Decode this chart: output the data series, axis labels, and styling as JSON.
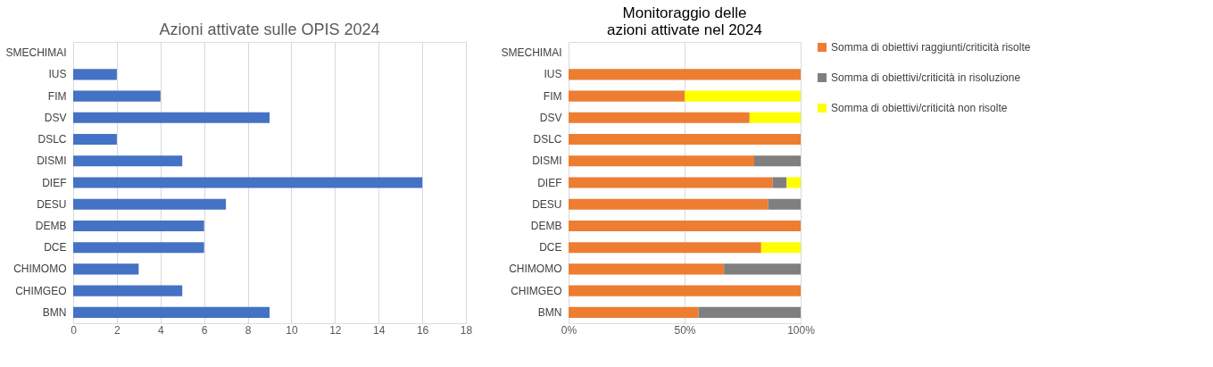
{
  "chart_data": [
    {
      "type": "bar",
      "orientation": "horizontal",
      "title": "Azioni attivate sulle OPIS 2024",
      "categories": [
        "SMECHIMAI",
        "IUS",
        "FIM",
        "DSV",
        "DSLC",
        "DISMI",
        "DIEF",
        "DESU",
        "DEMB",
        "DCE",
        "CHIMOMO",
        "CHIMGEO",
        "BMN"
      ],
      "series": [
        {
          "color": "#4472c4",
          "values": [
            null,
            2,
            4,
            9,
            2,
            5,
            16,
            7,
            6,
            6,
            3,
            5,
            9
          ]
        }
      ],
      "xlim": [
        0,
        18
      ],
      "xticks": [
        0,
        2,
        4,
        6,
        8,
        10,
        12,
        14,
        16,
        18
      ],
      "grid": "x",
      "legend": false
    },
    {
      "type": "bar",
      "orientation": "horizontal",
      "stacked": true,
      "title": "Monitoraggio delle\nazioni attivate nel 2024",
      "categories": [
        "SMECHIMAI",
        "IUS",
        "FIM",
        "DSV",
        "DSLC",
        "DISMI",
        "DIEF",
        "DESU",
        "DEMB",
        "DCE",
        "CHIMOMO",
        "CHIMGEO",
        "BMN"
      ],
      "series": [
        {
          "name": "Somma di obiettivi raggiunti/criticità risolte",
          "color": "#ed7d31",
          "values": [
            null,
            100,
            50,
            78,
            100,
            80,
            88,
            86,
            100,
            83,
            67,
            100,
            56
          ]
        },
        {
          "name": "Somma di obiettivi/criticità in risoluzione",
          "color": "#7f7f7f",
          "values": [
            null,
            0,
            0,
            0,
            0,
            20,
            6,
            14,
            0,
            0,
            33,
            0,
            44
          ]
        },
        {
          "name": "Somma di obiettivi/criticità non risolte",
          "color": "#ffff00",
          "values": [
            null,
            0,
            50,
            22,
            0,
            0,
            6,
            0,
            0,
            17,
            0,
            0,
            0
          ]
        }
      ],
      "xlim": [
        0,
        100
      ],
      "xticks": [
        {
          "value": 0,
          "label": "0%"
        },
        {
          "value": 50,
          "label": "50%"
        },
        {
          "value": 100,
          "label": "100%"
        }
      ],
      "grid": "x",
      "legend": "right"
    }
  ]
}
